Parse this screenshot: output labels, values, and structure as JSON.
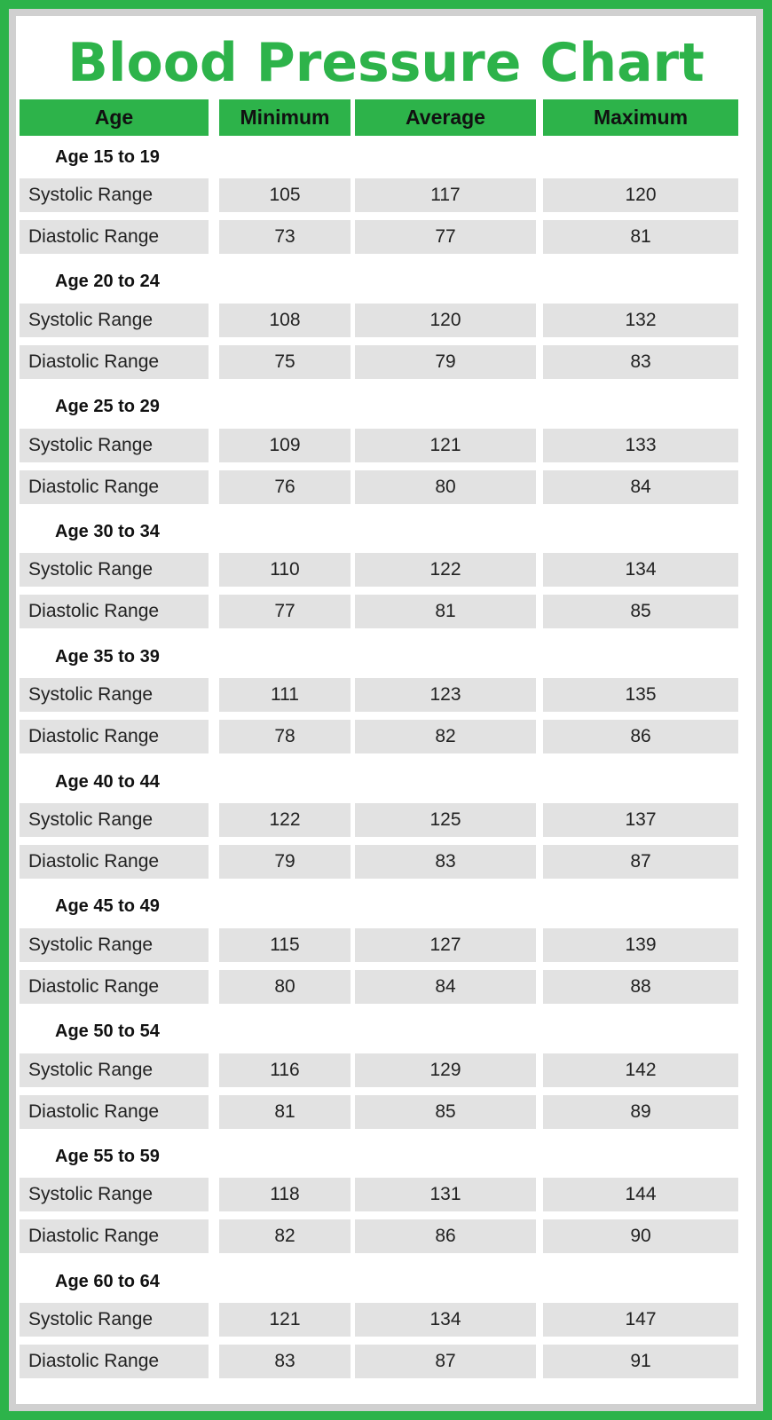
{
  "title": "Blood Pressure Chart",
  "header": [
    "Age",
    "Minimum",
    "Average",
    "Maximum"
  ],
  "groups": [
    {
      "label": "Age 15 to 19",
      "rows": [
        {
          "label": "Systolic Range",
          "values": [
            105,
            117,
            120
          ]
        },
        {
          "label": "Diastolic Range",
          "values": [
            73,
            77,
            81
          ]
        }
      ]
    },
    {
      "label": "Age 20 to 24",
      "rows": [
        {
          "label": "Systolic Range",
          "values": [
            108,
            120,
            132
          ]
        },
        {
          "label": "Diastolic Range",
          "values": [
            75,
            79,
            83
          ]
        }
      ]
    },
    {
      "label": "Age 25 to 29",
      "rows": [
        {
          "label": "Systolic Range",
          "values": [
            109,
            121,
            133
          ]
        },
        {
          "label": "Diastolic Range",
          "values": [
            76,
            80,
            84
          ]
        }
      ]
    },
    {
      "label": "Age 30 to 34",
      "rows": [
        {
          "label": "Systolic Range",
          "values": [
            110,
            122,
            134
          ]
        },
        {
          "label": "Diastolic Range",
          "values": [
            77,
            81,
            85
          ]
        }
      ]
    },
    {
      "label": "Age 35 to 39",
      "rows": [
        {
          "label": "Systolic Range",
          "values": [
            111,
            123,
            135
          ]
        },
        {
          "label": "Diastolic Range",
          "values": [
            78,
            82,
            86
          ]
        }
      ]
    },
    {
      "label": "Age 40 to 44",
      "rows": [
        {
          "label": "Systolic Range",
          "values": [
            122,
            125,
            137
          ]
        },
        {
          "label": "Diastolic Range",
          "values": [
            79,
            83,
            87
          ]
        }
      ]
    },
    {
      "label": "Age 45 to 49",
      "rows": [
        {
          "label": "Systolic Range",
          "values": [
            115,
            127,
            139
          ]
        },
        {
          "label": "Diastolic Range",
          "values": [
            80,
            84,
            88
          ]
        }
      ]
    },
    {
      "label": "Age 50 to 54",
      "rows": [
        {
          "label": "Systolic Range",
          "values": [
            116,
            129,
            142
          ]
        },
        {
          "label": "Diastolic Range",
          "values": [
            81,
            85,
            89
          ]
        }
      ]
    },
    {
      "label": "Age 55 to 59",
      "rows": [
        {
          "label": "Systolic Range",
          "values": [
            118,
            131,
            144
          ]
        },
        {
          "label": "Diastolic Range",
          "values": [
            82,
            86,
            90
          ]
        }
      ]
    },
    {
      "label": "Age 60 to 64",
      "rows": [
        {
          "label": "Systolic Range",
          "values": [
            121,
            134,
            147
          ]
        },
        {
          "label": "Diastolic Range",
          "values": [
            83,
            87,
            91
          ]
        }
      ]
    }
  ]
}
